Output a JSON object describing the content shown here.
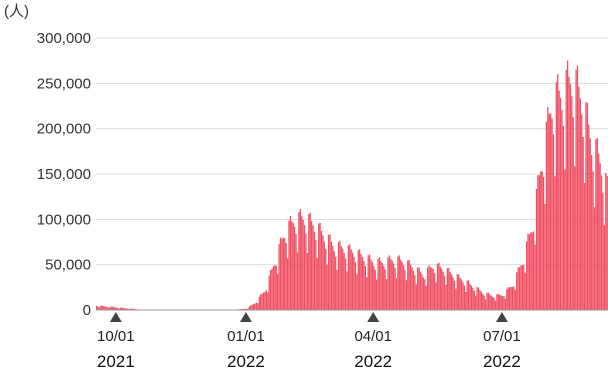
{
  "chart_data": {
    "type": "bar",
    "unit_label": "(人)",
    "ylim": [
      0,
      300000
    ],
    "y_ticks": [
      0,
      50000,
      100000,
      150000,
      200000,
      250000,
      300000
    ],
    "y_tick_labels": [
      "0",
      "50,000",
      "100,000",
      "150,000",
      "200,000",
      "250,000",
      "300,000"
    ],
    "grid": true,
    "x_start": "2021-09-17",
    "x_end": "2022-09-14",
    "x_tick_marks": [
      {
        "date": "2021-10-01",
        "label": "10/01",
        "year": "2021"
      },
      {
        "date": "2022-01-01",
        "label": "01/01",
        "year": "2022"
      },
      {
        "date": "2022-04-01",
        "label": "04/01",
        "year": "2022"
      },
      {
        "date": "2022-07-01",
        "label": "07/01",
        "year": "2022"
      }
    ],
    "color": "#ef4f63",
    "series": [
      {
        "x": [
          "2021-09-17",
          "2021-10-01",
          "2021-10-20",
          "2021-12-01",
          "2021-12-24",
          "2022-01-01",
          "2022-01-07",
          "2022-01-14",
          "2022-01-21",
          "2022-01-28",
          "2022-02-04",
          "2022-02-11",
          "2022-02-18",
          "2022-02-25",
          "2022-03-04",
          "2022-03-11",
          "2022-03-18",
          "2022-03-25",
          "2022-04-01",
          "2022-04-08",
          "2022-04-15",
          "2022-04-22",
          "2022-04-29",
          "2022-05-06",
          "2022-05-13",
          "2022-05-20",
          "2022-05-27",
          "2022-06-03",
          "2022-06-10",
          "2022-06-17",
          "2022-06-24",
          "2022-07-01",
          "2022-07-08",
          "2022-07-15",
          "2022-07-22",
          "2022-07-29",
          "2022-08-05",
          "2022-08-12",
          "2022-08-19",
          "2022-08-26",
          "2022-09-02",
          "2022-09-09",
          "2022-09-14"
        ],
        "values": [
          5000,
          3000,
          300,
          300,
          500,
          1500,
          8000,
          22000,
          55000,
          88000,
          102000,
          104000,
          96000,
          84000,
          72000,
          70000,
          65000,
          60000,
          54000,
          54000,
          57000,
          55000,
          48000,
          40000,
          50000,
          47000,
          40000,
          34000,
          27000,
          20000,
          16000,
          17000,
          28000,
          55000,
          95000,
          170000,
          235000,
          245000,
          262000,
          240000,
          190000,
          165000,
          130000
        ]
      }
    ]
  }
}
